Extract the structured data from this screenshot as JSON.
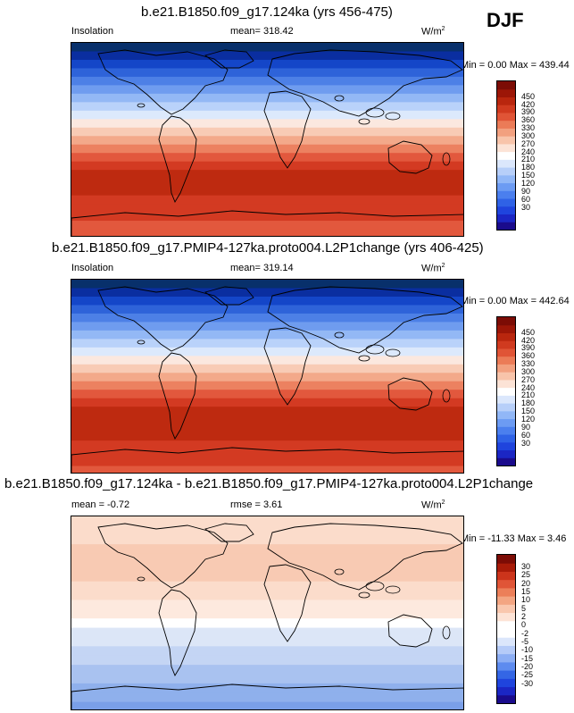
{
  "season": "DJF",
  "panels": [
    {
      "title": "b.e21.B1850.f09_g17.124ka (yrs 456-475)",
      "left_label": "Insolation",
      "center_label": "mean= 318.42",
      "units_base": "W/m",
      "units_exp": "2",
      "minmax": "Min =   0.00 Max = 439.44",
      "colors": [
        "#08306b",
        "#0a2ea0",
        "#1446c8",
        "#2e63d9",
        "#4d80e6",
        "#6f9cef",
        "#93b8f5",
        "#b9d2fa",
        "#dce9fc",
        "#fbe8df",
        "#f8cbb5",
        "#f3a98a",
        "#ec8160",
        "#e2583d",
        "#d33a22",
        "#be2a10",
        "#a31d07",
        "#7d1300"
      ],
      "bands": [
        0,
        1,
        2,
        3,
        4,
        5,
        6,
        7,
        8,
        9,
        10,
        11,
        12,
        13,
        14,
        15,
        15,
        15,
        14,
        14,
        14,
        13,
        13
      ],
      "colorbar": {
        "colors": [
          "#1a0b8c",
          "#1b26c4",
          "#1f44dd",
          "#2f62e6",
          "#4b7fee",
          "#6c9bf3",
          "#91b7f7",
          "#b7cff9",
          "#dbe7fc",
          "#ffffff",
          "#fce3d6",
          "#f8c4aa",
          "#f2a07f",
          "#eb7b57",
          "#e05436",
          "#d03a1f",
          "#b9260e",
          "#9c1607",
          "#7c0c05"
        ],
        "ticks": [
          "30",
          "60",
          "90",
          "120",
          "150",
          "180",
          "210",
          "240",
          "270",
          "300",
          "330",
          "360",
          "390",
          "420",
          "450"
        ]
      }
    },
    {
      "title": "b.e21.B1850.f09_g17.PMIP4-127ka.proto004.L2P1change (yrs 406-425)",
      "left_label": "Insolation",
      "center_label": "mean= 319.14",
      "units_base": "W/m",
      "units_exp": "2",
      "minmax": "Min =   0.00 Max = 442.64",
      "colors": [
        "#08306b",
        "#0a2ea0",
        "#1446c8",
        "#2e63d9",
        "#4d80e6",
        "#6f9cef",
        "#93b8f5",
        "#b9d2fa",
        "#dce9fc",
        "#fbe8df",
        "#f8cbb5",
        "#f3a98a",
        "#ec8160",
        "#e2583d",
        "#d33a22",
        "#be2a10",
        "#a31d07",
        "#7d1300"
      ],
      "bands": [
        0,
        1,
        2,
        3,
        4,
        5,
        6,
        7,
        8,
        9,
        10,
        11,
        12,
        13,
        14,
        15,
        15,
        15,
        15,
        14,
        14,
        14,
        13
      ],
      "colorbar": {
        "colors": [
          "#1a0b8c",
          "#1b26c4",
          "#1f44dd",
          "#2f62e6",
          "#4b7fee",
          "#6c9bf3",
          "#91b7f7",
          "#b7cff9",
          "#dbe7fc",
          "#ffffff",
          "#fce3d6",
          "#f8c4aa",
          "#f2a07f",
          "#eb7b57",
          "#e05436",
          "#d03a1f",
          "#b9260e",
          "#9c1607",
          "#7c0c05"
        ],
        "ticks": [
          "30",
          "60",
          "90",
          "120",
          "150",
          "180",
          "210",
          "240",
          "270",
          "300",
          "330",
          "360",
          "390",
          "420",
          "450"
        ]
      }
    },
    {
      "title": "b.e21.B1850.f09_g17.124ka - b.e21.B1850.f09_g17.PMIP4-127ka.proto004.L2P1change",
      "left_label": "mean =  -0.72",
      "center_label": "rmse =   3.61",
      "units_base": "W/m",
      "units_exp": "2",
      "minmax": "Min = -11.33 Max =   3.46",
      "colors": [
        "#fbdccb",
        "#f8cab3",
        "#fbdccb",
        "#fde9de",
        "#ffffff",
        "#dce6f7",
        "#c4d5f4",
        "#a9c2f0",
        "#8fb0ec",
        "#7a9fe8"
      ],
      "bands": [
        0,
        0,
        0,
        1,
        1,
        1,
        1,
        2,
        2,
        3,
        3,
        4,
        5,
        5,
        6,
        6,
        7,
        7,
        8,
        8,
        9
      ],
      "colorbar": {
        "colors": [
          "#1a0b8c",
          "#1b26c4",
          "#1f44dd",
          "#3466e5",
          "#5d8bef",
          "#8caef4",
          "#b5cbf8",
          "#dbe6fb",
          "#ffffff",
          "#ffffff",
          "#fde3d6",
          "#f9c7ae",
          "#f3a582",
          "#ec7f59",
          "#e05537",
          "#cc341b",
          "#a81b08",
          "#7c0c05"
        ],
        "ticks": [
          "-30",
          "-25",
          "-20",
          "-15",
          "-10",
          "-5",
          "-2",
          "0",
          "2",
          "5",
          "10",
          "15",
          "20",
          "25",
          "30"
        ]
      }
    }
  ]
}
